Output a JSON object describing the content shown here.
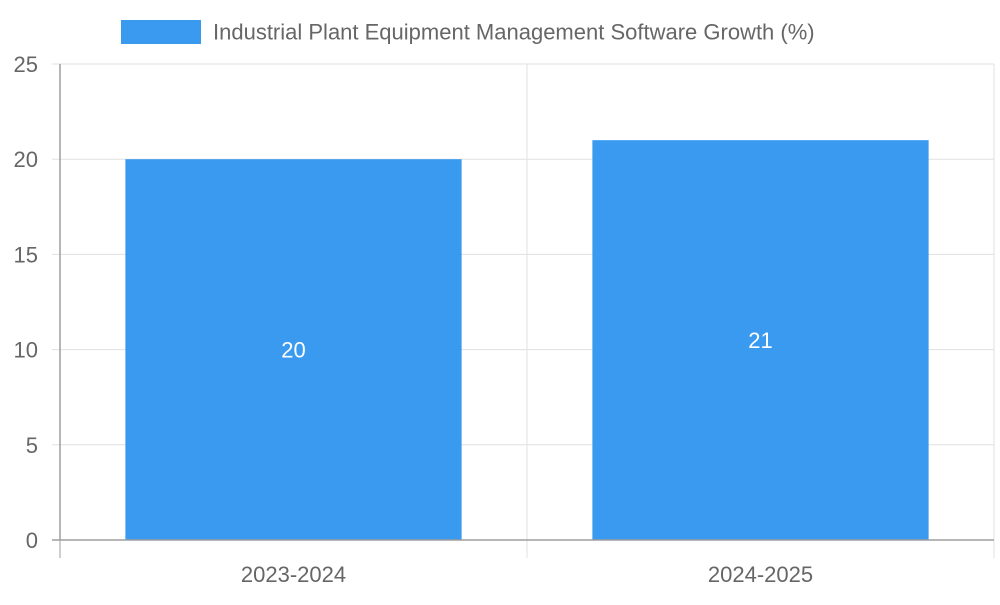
{
  "chart_data": {
    "type": "bar",
    "categories": [
      "2023-2024",
      "2024-2025"
    ],
    "series": [
      {
        "name": "Industrial Plant Equipment Management Software Growth (%)",
        "values": [
          20,
          21
        ],
        "color": "#399AF0"
      }
    ],
    "ylim": [
      0,
      25
    ],
    "yticks": [
      0,
      5,
      10,
      15,
      20,
      25
    ],
    "grid": true,
    "legend_position": "top-center",
    "data_labels": [
      "20",
      "21"
    ]
  },
  "colors": {
    "bar": "#399AF0",
    "grid": "#E0E0E0",
    "axis": "#9E9E9E",
    "tick_text": "#666666",
    "data_label": "#FFFFFF"
  }
}
